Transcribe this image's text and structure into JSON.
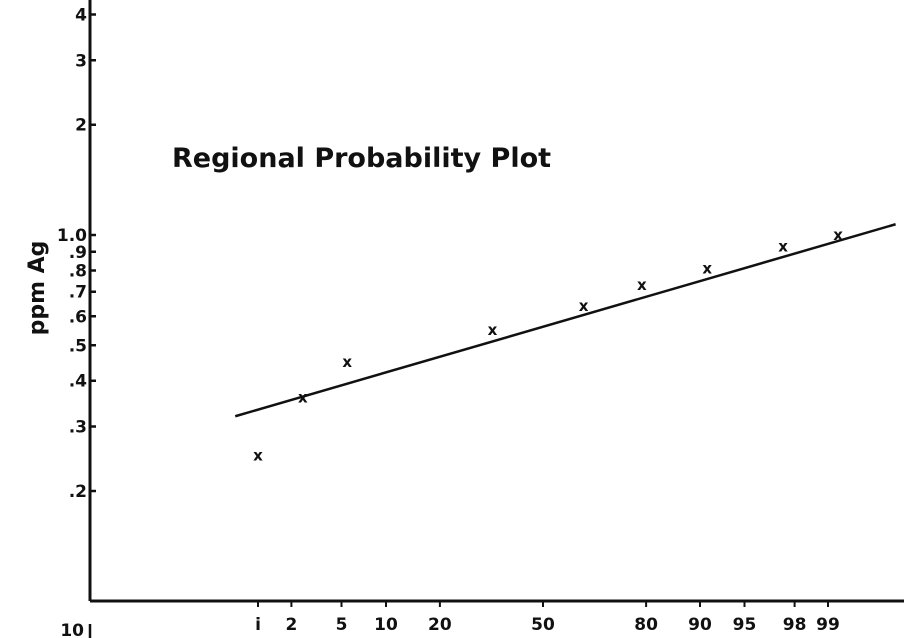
{
  "chart_data": {
    "type": "scatter",
    "title": "Regional Probability Plot",
    "ylabel": "ppm Ag",
    "xlabel": "",
    "x_scale": "normal-probability",
    "y_scale": "log",
    "x_ticks": [
      1,
      2,
      5,
      10,
      20,
      50,
      80,
      90,
      95,
      98,
      99
    ],
    "x_tick_labels": [
      "i",
      "2",
      "5",
      "10",
      "20",
      "50",
      "80",
      "90",
      "95",
      "98",
      "99"
    ],
    "y_ticks": [
      0.2,
      0.3,
      0.4,
      0.5,
      0.6,
      0.7,
      0.8,
      0.9,
      1.0,
      2,
      3,
      4
    ],
    "y_tick_labels": [
      ".2",
      ".3",
      ".4",
      ".5",
      ".6",
      ".7",
      ".8",
      ".9",
      "1.0",
      "2",
      "3",
      "4"
    ],
    "bottom_left_label": "10",
    "marker_symbol": "x",
    "points": [
      {
        "x": 1,
        "y": 0.25
      },
      {
        "x": 2.5,
        "y": 0.36
      },
      {
        "x": 5.5,
        "y": 0.45
      },
      {
        "x": 34,
        "y": 0.55
      },
      {
        "x": 63,
        "y": 0.64
      },
      {
        "x": 79,
        "y": 0.73
      },
      {
        "x": 91,
        "y": 0.81
      },
      {
        "x": 97.5,
        "y": 0.93
      },
      {
        "x": 99.2,
        "y": 1.0
      }
    ],
    "fit_line": {
      "x": [
        0.6,
        99.8
      ],
      "y": [
        0.32,
        1.07
      ]
    },
    "grid": false,
    "legend": "none"
  }
}
